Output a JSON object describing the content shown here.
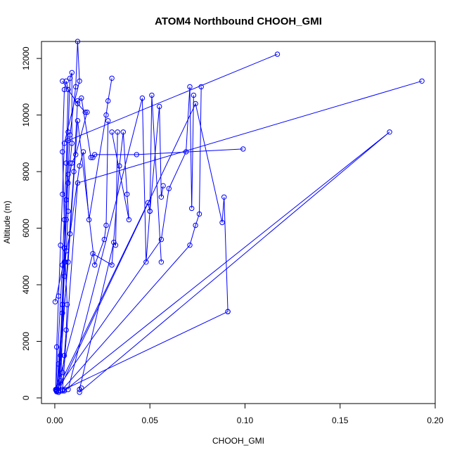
{
  "chart_data": {
    "type": "line",
    "title": "ATOM4 Northbound CHOOH_GMI",
    "xlabel": "CHOOH_GMI",
    "ylabel": "Altitude (m)",
    "xlim": [
      -0.007,
      0.2
    ],
    "ylim": [
      -200,
      12600
    ],
    "x_ticks": [
      0.0,
      0.05,
      0.1,
      0.15,
      0.2
    ],
    "x_tick_labels": [
      "0.00",
      "0.05",
      "0.10",
      "0.15",
      "0.20"
    ],
    "y_ticks": [
      0,
      2000,
      4000,
      6000,
      8000,
      10000,
      12000
    ],
    "y_tick_labels": [
      "0",
      "2000",
      "4000",
      "6000",
      "8000",
      "10000",
      "12000"
    ],
    "grid": false,
    "legend": "none",
    "marker": "open-circle",
    "color": "#0000ff",
    "series": [
      {
        "x": [
          0.001,
          0.003,
          0.004,
          0.005,
          0.006,
          0.007,
          0.008,
          0.011,
          0.012,
          0.013,
          0.005,
          0.004,
          0.003,
          0.002,
          0.001,
          0.0005,
          0.001
        ],
        "y": [
          250,
          1500,
          3300,
          4800,
          6300,
          7900,
          9300,
          11000,
          12600,
          11200,
          9000,
          7200,
          5400,
          3600,
          1800,
          300,
          220
        ]
      },
      {
        "x": [
          0.0005,
          0.004,
          0.006,
          0.007,
          0.006,
          0.005,
          0.004,
          0.005,
          0.0055,
          0.0065,
          0.006,
          0.005,
          0.004,
          0.003,
          0.002,
          0.001
        ],
        "y": [
          280,
          4700,
          8300,
          10900,
          11200,
          10900,
          8700,
          6300,
          4800,
          3300,
          2400,
          1500,
          900,
          600,
          400,
          300
        ]
      },
      {
        "x": [
          0.002,
          0.004,
          0.005,
          0.006,
          0.007,
          0.008,
          0.009,
          0.009,
          0.008,
          0.007,
          0.006,
          0.005,
          0.004,
          0.002,
          0.001
        ],
        "y": [
          200,
          3300,
          5300,
          7000,
          9400,
          11300,
          11500,
          9000,
          8300,
          6600,
          5200,
          4300,
          3000,
          1200,
          250
        ]
      },
      {
        "x": [
          0.004,
          0.012,
          0.016,
          0.017,
          0.011,
          0.009,
          0.007,
          0.006,
          0.005,
          0.002
        ],
        "y": [
          11200,
          10400,
          10100,
          10100,
          8600,
          8300,
          7600,
          7000,
          5300,
          250
        ]
      },
      {
        "x": [
          0.002,
          0.01,
          0.012,
          0.014,
          0.019,
          0.02,
          0.021,
          0.043,
          0.099
        ],
        "y": [
          200,
          8000,
          10500,
          10600,
          8500,
          8500,
          8600,
          8600,
          8800
        ]
      },
      {
        "x": [
          0.0002,
          0.008,
          0.013,
          0.015,
          0.018,
          0.027,
          0.028,
          0.03
        ],
        "y": [
          3400,
          5800,
          8200,
          8700,
          6300,
          10000,
          10500,
          11300
        ]
      },
      {
        "x": [
          0.001,
          0.007,
          0.012,
          0.021,
          0.026,
          0.027,
          0.028
        ],
        "y": [
          300,
          4800,
          9800,
          4700,
          5600,
          6100,
          9800
        ]
      },
      {
        "x": [
          0.001,
          0.02,
          0.03,
          0.034,
          0.036,
          0.038,
          0.039,
          0.03
        ],
        "y": [
          300,
          5100,
          4700,
          8200,
          9400,
          7200,
          6300,
          9400
        ]
      },
      {
        "x": [
          0.013,
          0.031,
          0.032,
          0.033
        ],
        "y": [
          300,
          5500,
          5400,
          9400
        ]
      },
      {
        "x": [
          0.007,
          0.046,
          0.048,
          0.05,
          0.051,
          0.056
        ],
        "y": [
          300,
          10600,
          4800,
          6600,
          10700,
          4800
        ]
      },
      {
        "x": [
          0.001,
          0.049,
          0.05,
          0.055,
          0.056,
          0.057
        ],
        "y": [
          250,
          6900,
          6600,
          10300,
          7100,
          7500
        ]
      },
      {
        "x": [
          0.001,
          0.056,
          0.06,
          0.069,
          0.071,
          0.072,
          0.073
        ],
        "y": [
          300,
          5600,
          7400,
          8700,
          11000,
          6700,
          10700
        ]
      },
      {
        "x": [
          0.004,
          0.071,
          0.074,
          0.076,
          0.077
        ],
        "y": [
          300,
          5400,
          6100,
          6500,
          11000
        ]
      },
      {
        "x": [
          0.002,
          0.074,
          0.088,
          0.089,
          0.091
        ],
        "y": [
          250,
          10400,
          6200,
          7100,
          3050
        ]
      },
      {
        "x": [
          0.003,
          0.007,
          0.117
        ],
        "y": [
          250,
          9100,
          12150
        ]
      },
      {
        "x": [
          0.004,
          0.012,
          0.193
        ],
        "y": [
          250,
          7600,
          11200
        ]
      },
      {
        "x": [
          0.005,
          0.176,
          0.013,
          0.014
        ],
        "y": [
          250,
          9400,
          200,
          350
        ]
      },
      {
        "x": [
          0.005,
          0.091
        ],
        "y": [
          300,
          3050
        ]
      }
    ]
  }
}
